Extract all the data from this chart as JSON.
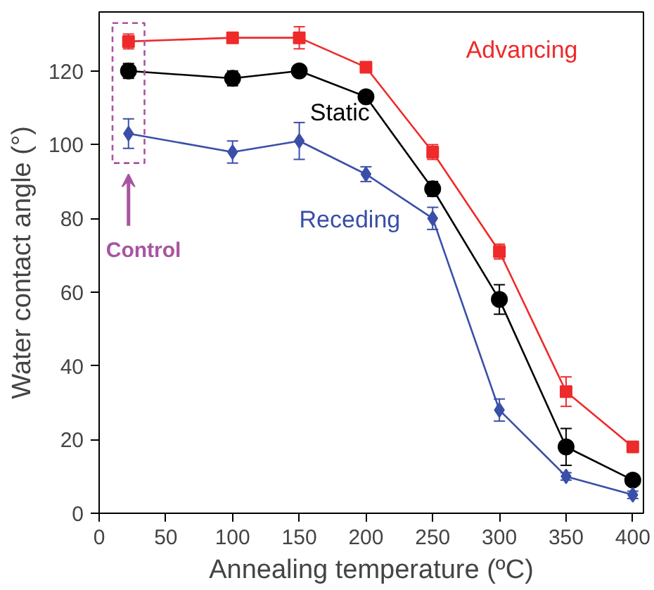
{
  "chart_data": {
    "type": "line",
    "xlabel": "Annealing temperature (ºC)",
    "ylabel": "Water contact angle (°)",
    "x": [
      22,
      100,
      150,
      200,
      250,
      300,
      350,
      400
    ],
    "series": [
      {
        "name": "Advancing",
        "color": "#ee2a2a",
        "marker": "square",
        "values": [
          128,
          129,
          129,
          121,
          98,
          71,
          33,
          18
        ],
        "errors": [
          2,
          1,
          3,
          1,
          2,
          2,
          4,
          1
        ]
      },
      {
        "name": "Static",
        "color": "#000000",
        "marker": "circle",
        "values": [
          120,
          118,
          120,
          113,
          88,
          58,
          18,
          9
        ],
        "errors": [
          2,
          2,
          1,
          1,
          2,
          4,
          5,
          1
        ]
      },
      {
        "name": "Receding",
        "color": "#3a4fa8",
        "marker": "diamond",
        "values": [
          103,
          98,
          101,
          92,
          80,
          28,
          10,
          5
        ],
        "errors": [
          4,
          3,
          5,
          2,
          3,
          3,
          1,
          1
        ]
      }
    ],
    "xlim": [
      0,
      408
    ],
    "ylim": [
      0,
      136
    ],
    "xticks": [
      0,
      50,
      100,
      150,
      200,
      250,
      300,
      350,
      400
    ],
    "yticks": [
      0,
      20,
      40,
      60,
      80,
      100,
      120
    ],
    "grid": false,
    "annotations": [
      "Control"
    ]
  }
}
